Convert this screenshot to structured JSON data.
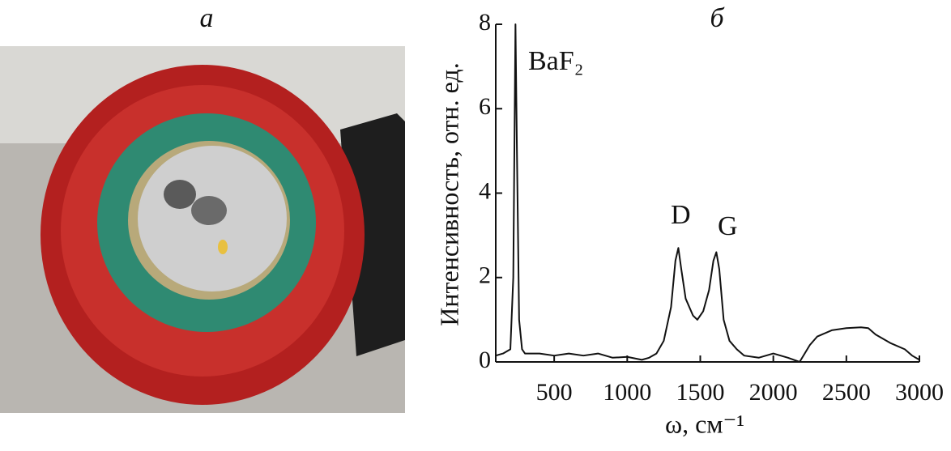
{
  "panel_labels": [
    "а",
    "б"
  ],
  "chart_data": {
    "type": "line",
    "x_label": "ω, см⁻¹",
    "y_label": "Интенсивность, отн. ед.",
    "annotations": [
      "BaF₂",
      "D",
      "G"
    ],
    "x": [
      100,
      150,
      200,
      220,
      235,
      245,
      260,
      280,
      300,
      400,
      500,
      600,
      700,
      800,
      900,
      1000,
      1100,
      1150,
      1200,
      1250,
      1300,
      1330,
      1350,
      1370,
      1400,
      1450,
      1480,
      1520,
      1560,
      1590,
      1610,
      1630,
      1660,
      1700,
      1750,
      1800,
      1900,
      2000,
      2100,
      2180,
      2250,
      2300,
      2400,
      2500,
      2600,
      2650,
      2700,
      2800,
      2900,
      2950,
      3000
    ],
    "series": [
      {
        "color": "#111111",
        "values": [
          0.15,
          0.2,
          0.3,
          2,
          8,
          5,
          1,
          0.3,
          0.2,
          0.2,
          0.15,
          0.2,
          0.15,
          0.2,
          0.1,
          0.12,
          0.05,
          0.1,
          0.2,
          0.5,
          1.3,
          2.4,
          2.7,
          2.2,
          1.5,
          1.1,
          1.0,
          1.2,
          1.7,
          2.4,
          2.6,
          2.2,
          1.0,
          0.5,
          0.3,
          0.15,
          0.1,
          0.2,
          0.1,
          0.0,
          0.4,
          0.6,
          0.75,
          0.8,
          0.82,
          0.8,
          0.65,
          0.45,
          0.3,
          0.15,
          0.05
        ]
      }
    ],
    "xlim": [
      100,
      3000
    ],
    "ylim": [
      0,
      8
    ],
    "xticks": [
      500,
      1000,
      1500,
      2000,
      2500,
      3000
    ],
    "yticks": [
      0,
      2,
      4,
      6,
      8
    ]
  }
}
